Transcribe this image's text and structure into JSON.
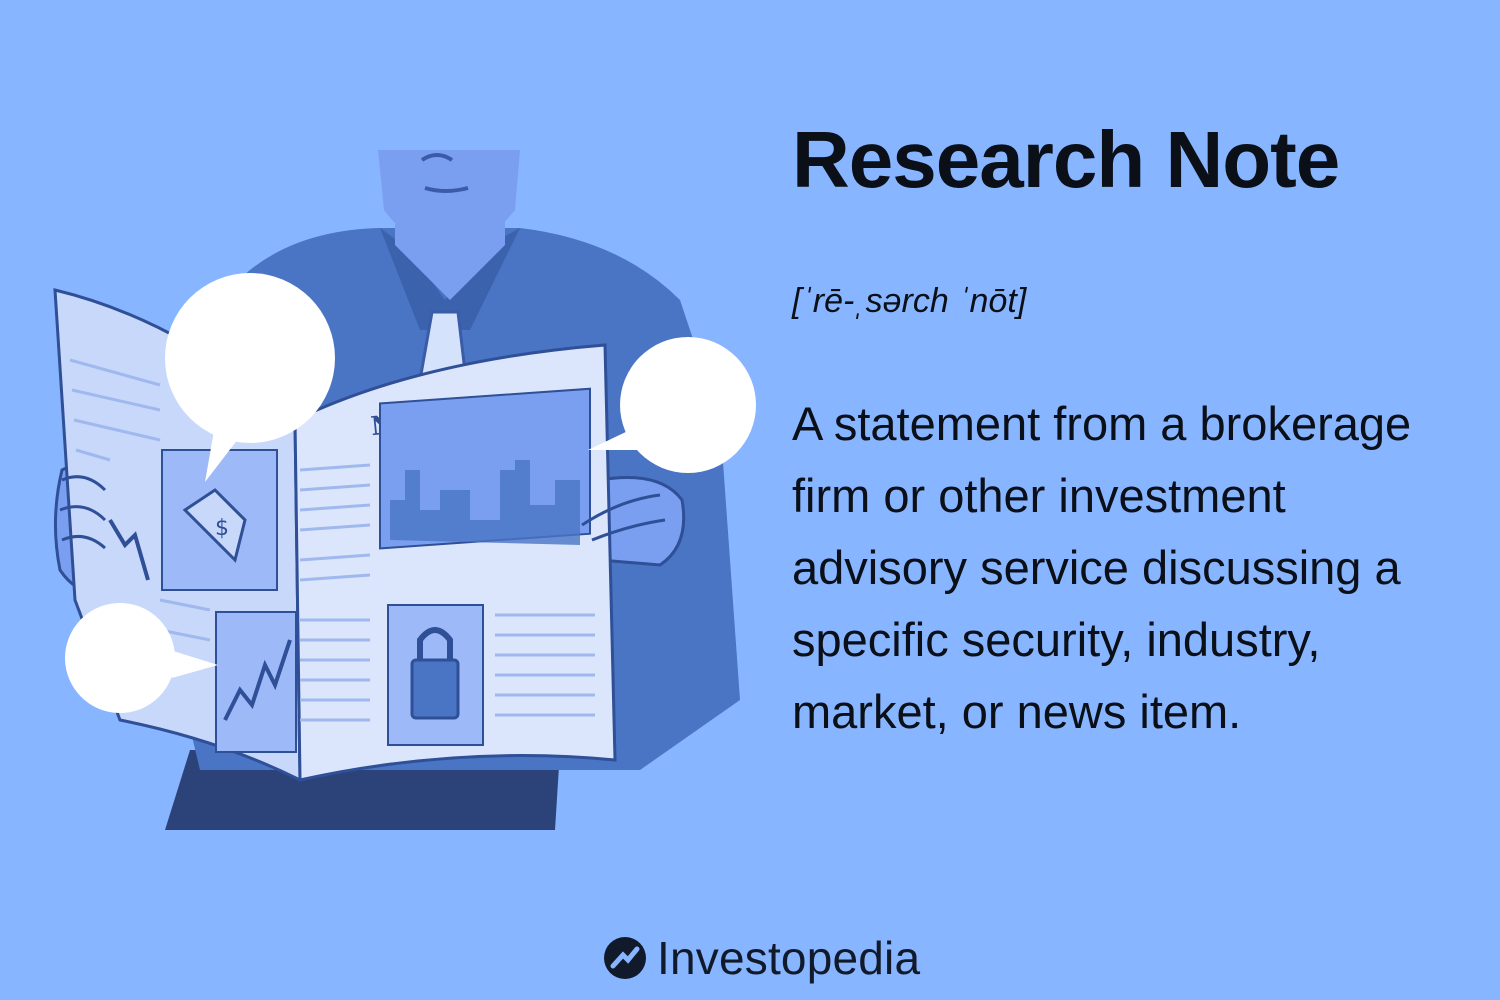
{
  "term": {
    "title": "Research Note",
    "pronunciation": "[ˈrē-ˌsərch ˈnōt]",
    "definition": "A statement from a brokerage firm or other investment advisory service discussing a specific security, industry, market, or news item."
  },
  "illustration": {
    "newspaper_headline": "NEWS",
    "price_tag_symbol": "$"
  },
  "brand": {
    "name": "Investopedia"
  },
  "colors": {
    "background": "#88b5ff",
    "text": "#0a0f18",
    "shirt": "#4a74c4",
    "skin": "#7b9ff0",
    "paper": "#c8d8fb",
    "trousers": "#2b4379",
    "bubble": "#ffffff"
  }
}
